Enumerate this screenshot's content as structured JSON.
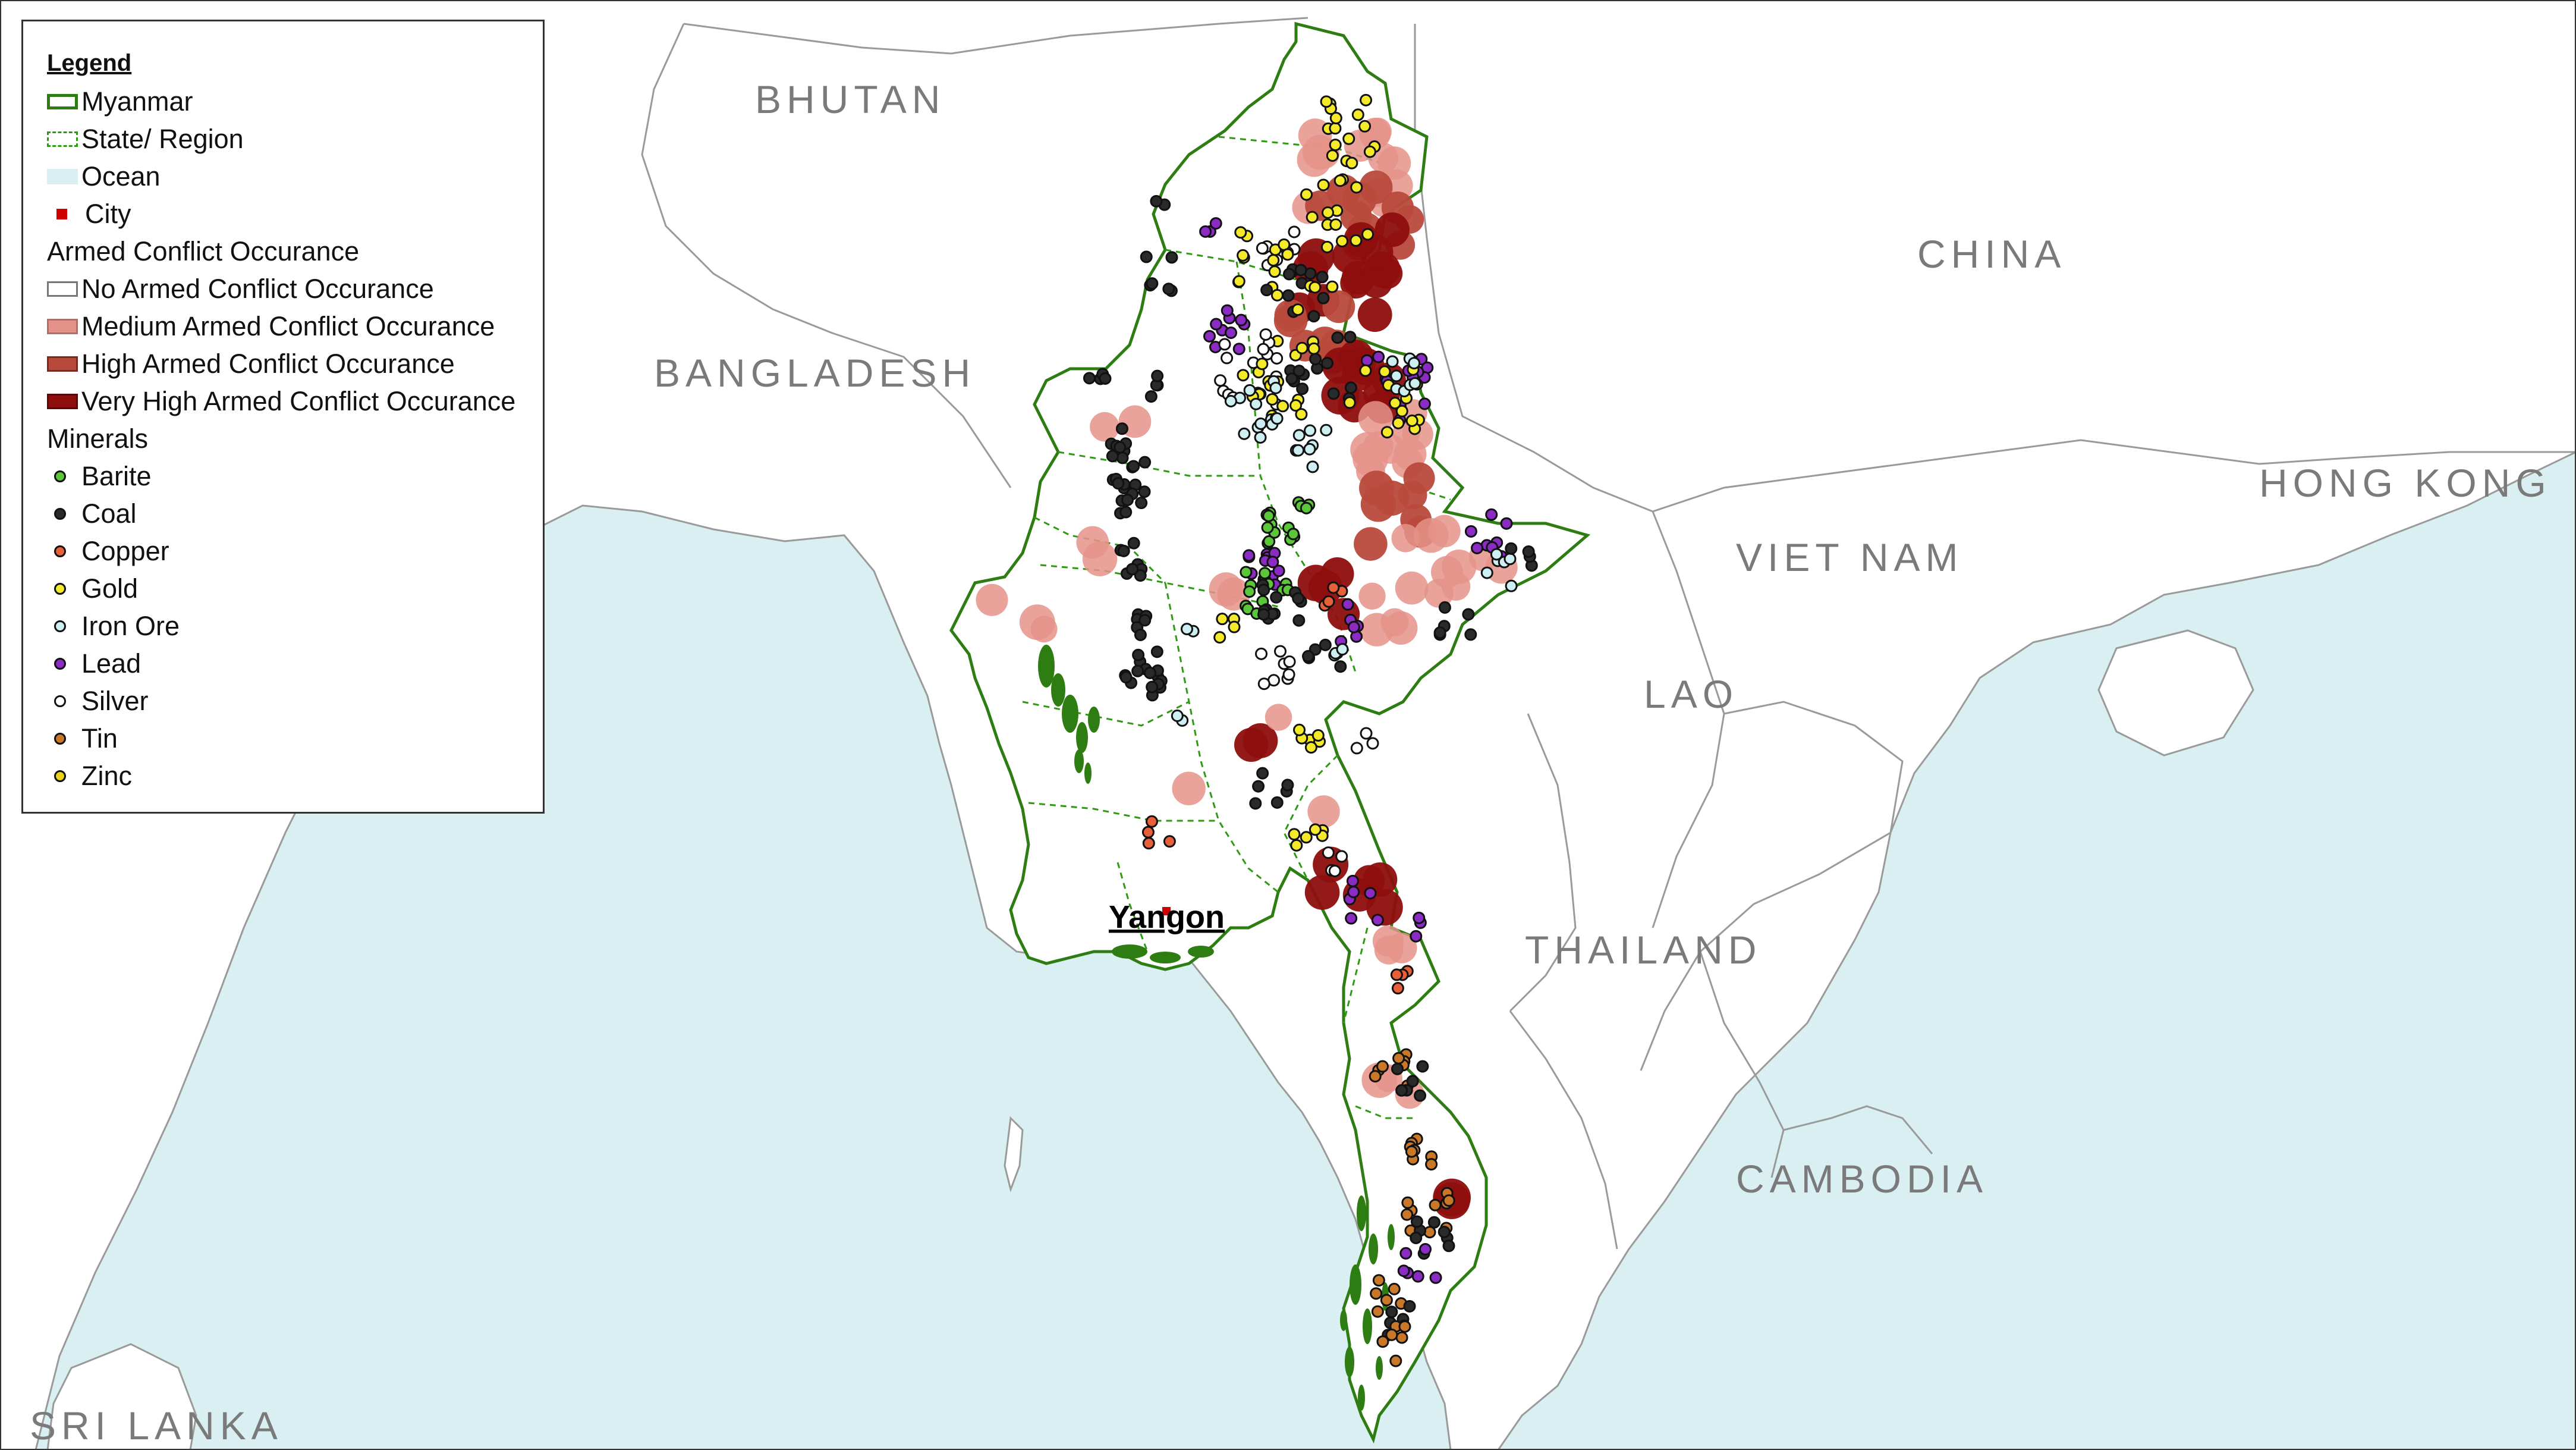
{
  "colors": {
    "ocean": "#d9eff1",
    "land": "#ffffff",
    "border": "#9a9a9a",
    "myanmar_outline": "#2e7d12",
    "coast_green": "#2e7d12",
    "country_label": "#7a7a7a",
    "city": "#d00000",
    "conflict_medium": "#e5938a",
    "conflict_high": "#b84a3c",
    "conflict_very_high": "#8e0e0e"
  },
  "map": {
    "country_labels": [
      "BHUTAN",
      "CHINA",
      "BANGLADESH",
      "HONG KONG",
      "VIET NAM",
      "LAO",
      "THAILAND",
      "CAMBODIA",
      "SRI LANKA"
    ],
    "city_label": "Yangon"
  },
  "legend": {
    "title": "Legend",
    "items": [
      {
        "label": "Myanmar",
        "symbol": "outline-box",
        "color": "#2e7d12"
      },
      {
        "label": "State/ Region",
        "symbol": "dashed-box",
        "color": "#2e7d12"
      },
      {
        "label": "Ocean",
        "symbol": "filled-box",
        "color": "#d9eff1"
      },
      {
        "label": "City",
        "symbol": "square",
        "color": "#d00000"
      },
      {
        "label": "Armed Conflict Occurance",
        "symbol": "none"
      },
      {
        "label": "No Armed Conflict Occurance",
        "symbol": "outline-box",
        "color": "#777777"
      },
      {
        "label": "Medium Armed Conflict Occurance",
        "symbol": "filled-box",
        "color": "#e5938a"
      },
      {
        "label": "High Armed Conflict Occurance",
        "symbol": "filled-box",
        "color": "#b84a3c"
      },
      {
        "label": "Very High Armed Conflict Occurance",
        "symbol": "filled-box",
        "color": "#8e0e0e"
      },
      {
        "label": "Minerals",
        "symbol": "none"
      },
      {
        "label": "Barite",
        "symbol": "dot",
        "color": "#5cc63a"
      },
      {
        "label": "Coal",
        "symbol": "dot",
        "color": "#2a2a2a"
      },
      {
        "label": "Copper",
        "symbol": "dot",
        "color": "#e8603a"
      },
      {
        "label": "Gold",
        "symbol": "dot",
        "color": "#f5ea2a"
      },
      {
        "label": "Iron Ore",
        "symbol": "dot",
        "color": "#cdeff2"
      },
      {
        "label": "Lead",
        "symbol": "dot",
        "color": "#8a2bc4"
      },
      {
        "label": "Silver",
        "symbol": "dot",
        "color": "#ffffff"
      },
      {
        "label": "Tin",
        "symbol": "dot",
        "color": "#c9782a"
      },
      {
        "label": "Zinc",
        "symbol": "dot",
        "color": "#e8d21a"
      }
    ]
  }
}
